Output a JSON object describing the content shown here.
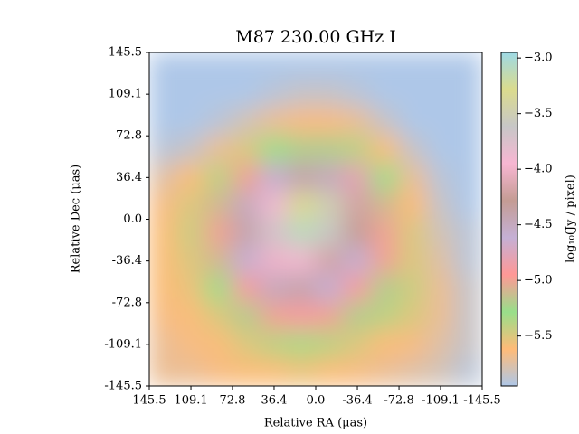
{
  "chart_data": {
    "type": "heatmap",
    "title": "M87 230.00 GHz I",
    "xlabel": "Relative RA (μas)",
    "ylabel": "Relative Dec (μas)",
    "xlim": [
      145.5,
      -145.5
    ],
    "ylim": [
      -145.5,
      145.5
    ],
    "xticks": [
      145.5,
      109.1,
      72.8,
      36.4,
      {
        "value": 0,
        "label": "0.0"
      },
      -36.4,
      -72.8,
      -109.1,
      -145.5
    ],
    "yticks": [
      145.5,
      109.1,
      72.8,
      36.4,
      {
        "value": 0,
        "label": "0.0"
      },
      -36.4,
      -72.8,
      -109.1,
      -145.5
    ],
    "values": [
      [
        -5.95,
        -5.95,
        -5.95,
        -5.95,
        -5.95,
        -5.95,
        -5.95,
        -5.95,
        -5.95,
        -5.95,
        -5.95,
        -5.95
      ],
      [
        -5.95,
        -5.95,
        -5.95,
        -5.95,
        -5.9,
        -5.85,
        -5.85,
        -5.9,
        -5.95,
        -5.95,
        -5.95,
        -5.95
      ],
      [
        -5.95,
        -5.95,
        -5.9,
        -5.8,
        -5.7,
        -5.65,
        -5.65,
        -5.7,
        -5.85,
        -5.95,
        -5.95,
        -5.95
      ],
      [
        -5.9,
        -5.85,
        -5.7,
        -5.5,
        -5.3,
        -5.2,
        -5.2,
        -5.4,
        -5.6,
        -5.85,
        -5.95,
        -5.95
      ],
      [
        -5.75,
        -5.6,
        -5.4,
        -5.0,
        -4.6,
        -4.4,
        -4.5,
        -4.8,
        -5.3,
        -5.7,
        -5.9,
        -5.95
      ],
      [
        -5.65,
        -5.5,
        -5.1,
        -4.5,
        -3.9,
        -3.3,
        -3.5,
        -4.2,
        -5.1,
        -5.6,
        -5.85,
        -5.95
      ],
      [
        -5.6,
        -5.45,
        -5.0,
        -4.4,
        -3.7,
        -3.1,
        -3.6,
        -4.3,
        -5.0,
        -5.5,
        -5.8,
        -5.9
      ],
      [
        -5.6,
        -5.5,
        -5.1,
        -4.6,
        -4.0,
        -3.9,
        -4.2,
        -4.6,
        -5.0,
        -5.5,
        -5.75,
        -5.9
      ],
      [
        -5.6,
        -5.55,
        -5.3,
        -4.9,
        -4.5,
        -4.4,
        -4.6,
        -4.9,
        -5.2,
        -5.45,
        -5.7,
        -5.85
      ],
      [
        -5.65,
        -5.6,
        -5.5,
        -5.2,
        -5.0,
        -4.9,
        -5.0,
        -5.2,
        -5.4,
        -5.5,
        -5.7,
        -5.85
      ],
      [
        -5.7,
        -5.65,
        -5.6,
        -5.5,
        -5.4,
        -5.35,
        -5.4,
        -5.5,
        -5.6,
        -5.65,
        -5.75,
        -5.85
      ],
      [
        -5.7,
        -5.7,
        -5.65,
        -5.6,
        -5.6,
        -5.55,
        -5.6,
        -5.65,
        -5.7,
        -5.75,
        -5.8,
        -5.9
      ]
    ],
    "colormap": [
      "#aec7e8",
      "#ffbb78",
      "#98df8a",
      "#ff9896",
      "#c5b0d5",
      "#c49c94",
      "#f7b6d2",
      "#c7c7c7",
      "#dbdb8d",
      "#9edae5"
    ],
    "colorbar": {
      "label": "log₁₀(Jy / pixel)",
      "lim": [
        -5.95,
        -2.95
      ],
      "ticks": [
        {
          "value": -3.0,
          "label": "−3.0"
        },
        {
          "value": -3.5,
          "label": "−3.5"
        },
        {
          "value": -4.0,
          "label": "−4.0"
        },
        {
          "value": -4.5,
          "label": "−4.5"
        },
        {
          "value": -5.0,
          "label": "−5.0"
        },
        {
          "value": -5.5,
          "label": "−5.5"
        }
      ]
    }
  }
}
